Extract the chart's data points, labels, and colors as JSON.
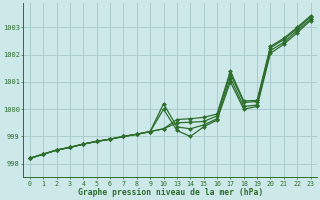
{
  "xlabel": "Graphe pression niveau de la mer (hPa)",
  "background_color": "#cce8e8",
  "grid_color": "#aacccc",
  "line_color": "#2d6e2d",
  "ylim": [
    997.5,
    1003.9
  ],
  "yticks": [
    998,
    999,
    1000,
    1001,
    1002,
    1003
  ],
  "x_display": [
    0,
    1,
    2,
    3,
    4,
    5,
    6,
    7,
    8,
    9,
    10,
    13,
    14,
    15,
    16,
    17,
    18,
    19,
    20,
    21,
    22,
    23
  ],
  "series": [
    {
      "xp": [
        0,
        1,
        2,
        3,
        4,
        5,
        6,
        7,
        8,
        9,
        10,
        11,
        12,
        13,
        14,
        15,
        16,
        17,
        18,
        19,
        20,
        21
      ],
      "y": [
        998.2,
        998.35,
        998.5,
        998.6,
        998.72,
        998.82,
        998.9,
        999.0,
        999.08,
        999.18,
        999.28,
        999.62,
        999.65,
        999.7,
        999.82,
        1001.4,
        1000.3,
        1000.32,
        1002.3,
        1002.6,
        1003.0,
        1003.42
      ]
    },
    {
      "xp": [
        0,
        1,
        2,
        3,
        4,
        5,
        6,
        7,
        8,
        9,
        10,
        11,
        12,
        13,
        14,
        15,
        16,
        17,
        18,
        19,
        20,
        21
      ],
      "y": [
        998.2,
        998.35,
        998.5,
        998.6,
        998.72,
        998.82,
        998.9,
        999.0,
        999.08,
        999.18,
        999.28,
        999.5,
        999.52,
        999.55,
        999.75,
        1001.3,
        1000.25,
        1000.28,
        1002.25,
        1002.55,
        1002.95,
        1003.38
      ]
    },
    {
      "xp": [
        0,
        1,
        2,
        3,
        4,
        5,
        6,
        7,
        8,
        9,
        10,
        11,
        12,
        13,
        14,
        15,
        16,
        17,
        18,
        19,
        20,
        21
      ],
      "y": [
        998.2,
        998.35,
        998.5,
        998.6,
        998.72,
        998.82,
        998.9,
        999.0,
        999.08,
        999.18,
        1000.2,
        999.35,
        999.28,
        999.42,
        999.65,
        1001.15,
        1000.1,
        1000.15,
        1002.15,
        1002.45,
        1002.88,
        1003.3
      ]
    },
    {
      "xp": [
        0,
        1,
        2,
        3,
        4,
        5,
        6,
        7,
        8,
        9,
        10,
        11,
        12,
        13,
        14,
        15,
        16,
        17,
        18,
        19,
        20,
        21
      ],
      "y": [
        998.2,
        998.35,
        998.5,
        998.6,
        998.72,
        998.82,
        998.9,
        999.0,
        999.08,
        999.18,
        1000.0,
        999.22,
        999.0,
        999.35,
        999.6,
        1001.0,
        1000.0,
        1000.1,
        1002.05,
        1002.38,
        1002.8,
        1003.25
      ]
    }
  ]
}
